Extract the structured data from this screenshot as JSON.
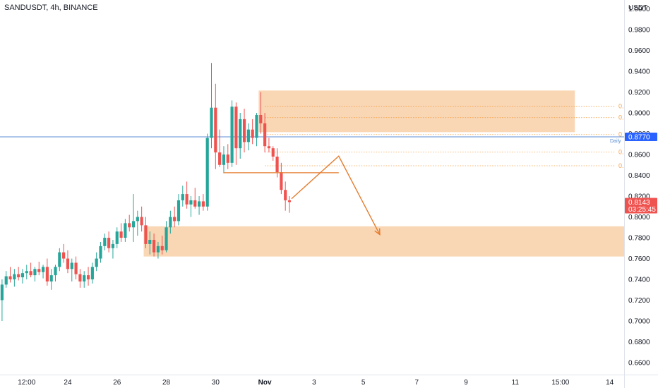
{
  "header": {
    "symbol_line": "SANDUSDT, 4h, BINANCE"
  },
  "colors": {
    "up": "#26a69a",
    "down": "#ef5350",
    "zone": "#f7c89b",
    "fib": "#f5a04a",
    "arrow": "#e57c2e",
    "hline": "#5b8fd6",
    "price_tag": "#ef5350",
    "hline_tag": "#2962ff"
  },
  "chart_data": {
    "type": "candlestick",
    "currency": "USDT",
    "y_ticks": [
      "1.0000",
      "0.9800",
      "0.9600",
      "0.9400",
      "0.9200",
      "0.9000",
      "0.8800",
      "0.8600",
      "0.8400",
      "0.8200",
      "0.8000",
      "0.7800",
      "0.7600",
      "0.7400",
      "0.7200",
      "0.7000",
      "0.6800",
      "0.6600"
    ],
    "x_ticks": [
      "12:00",
      "24",
      "26",
      "28",
      "30",
      "Nov",
      "3",
      "5",
      "7",
      "9",
      "11",
      "15:00",
      "14"
    ],
    "x_tick_bars": [
      6,
      16,
      28,
      40,
      52,
      64,
      76,
      88,
      101,
      113,
      125,
      136,
      148
    ],
    "ylim": [
      0.6485,
      1.0085
    ],
    "bars_visible": 152,
    "candles": [
      [
        0.72,
        0.74,
        0.7,
        0.735
      ],
      [
        0.735,
        0.748,
        0.732,
        0.743
      ],
      [
        0.743,
        0.752,
        0.737,
        0.74
      ],
      [
        0.74,
        0.75,
        0.733,
        0.745
      ],
      [
        0.745,
        0.752,
        0.739,
        0.742
      ],
      [
        0.742,
        0.75,
        0.736,
        0.746
      ],
      [
        0.746,
        0.754,
        0.74,
        0.748
      ],
      [
        0.748,
        0.756,
        0.742,
        0.744
      ],
      [
        0.744,
        0.752,
        0.738,
        0.75
      ],
      [
        0.75,
        0.757,
        0.744,
        0.747
      ],
      [
        0.747,
        0.754,
        0.741,
        0.752
      ],
      [
        0.752,
        0.76,
        0.734,
        0.738
      ],
      [
        0.738,
        0.75,
        0.73,
        0.744
      ],
      [
        0.744,
        0.754,
        0.738,
        0.752
      ],
      [
        0.752,
        0.77,
        0.748,
        0.766
      ],
      [
        0.766,
        0.774,
        0.756,
        0.76
      ],
      [
        0.76,
        0.768,
        0.746,
        0.75
      ],
      [
        0.75,
        0.76,
        0.738,
        0.756
      ],
      [
        0.756,
        0.762,
        0.74,
        0.745
      ],
      [
        0.745,
        0.75,
        0.732,
        0.738
      ],
      [
        0.738,
        0.748,
        0.732,
        0.744
      ],
      [
        0.744,
        0.752,
        0.734,
        0.74
      ],
      [
        0.74,
        0.756,
        0.736,
        0.752
      ],
      [
        0.752,
        0.766,
        0.748,
        0.76
      ],
      [
        0.76,
        0.776,
        0.756,
        0.772
      ],
      [
        0.772,
        0.784,
        0.768,
        0.78
      ],
      [
        0.78,
        0.786,
        0.766,
        0.77
      ],
      [
        0.77,
        0.778,
        0.76,
        0.774
      ],
      [
        0.774,
        0.79,
        0.77,
        0.786
      ],
      [
        0.786,
        0.794,
        0.776,
        0.78
      ],
      [
        0.78,
        0.798,
        0.776,
        0.794
      ],
      [
        0.794,
        0.802,
        0.786,
        0.79
      ],
      [
        0.79,
        0.822,
        0.776,
        0.796
      ],
      [
        0.796,
        0.806,
        0.782,
        0.8
      ],
      [
        0.8,
        0.81,
        0.786,
        0.792
      ],
      [
        0.792,
        0.8,
        0.77,
        0.774
      ],
      [
        0.774,
        0.786,
        0.764,
        0.778
      ],
      [
        0.778,
        0.784,
        0.762,
        0.766
      ],
      [
        0.766,
        0.776,
        0.76,
        0.772
      ],
      [
        0.772,
        0.782,
        0.764,
        0.768
      ],
      [
        0.768,
        0.796,
        0.766,
        0.79
      ],
      [
        0.79,
        0.806,
        0.784,
        0.8
      ],
      [
        0.8,
        0.81,
        0.79,
        0.796
      ],
      [
        0.796,
        0.822,
        0.792,
        0.816
      ],
      [
        0.816,
        0.83,
        0.81,
        0.822
      ],
      [
        0.822,
        0.834,
        0.808,
        0.812
      ],
      [
        0.812,
        0.82,
        0.8,
        0.816
      ],
      [
        0.816,
        0.828,
        0.808,
        0.81
      ],
      [
        0.81,
        0.82,
        0.802,
        0.815
      ],
      [
        0.815,
        0.822,
        0.806,
        0.81
      ],
      [
        0.81,
        0.88,
        0.806,
        0.876
      ],
      [
        0.876,
        0.948,
        0.866,
        0.905
      ],
      [
        0.905,
        0.928,
        0.846,
        0.862
      ],
      [
        0.862,
        0.884,
        0.848,
        0.85
      ],
      [
        0.85,
        0.868,
        0.842,
        0.86
      ],
      [
        0.86,
        0.87,
        0.846,
        0.852
      ],
      [
        0.852,
        0.912,
        0.848,
        0.906
      ],
      [
        0.906,
        0.91,
        0.85,
        0.866
      ],
      [
        0.866,
        0.9,
        0.856,
        0.894
      ],
      [
        0.894,
        0.904,
        0.862,
        0.872
      ],
      [
        0.872,
        0.89,
        0.864,
        0.884
      ],
      [
        0.884,
        0.894,
        0.87,
        0.876
      ],
      [
        0.876,
        0.9,
        0.868,
        0.898
      ],
      [
        0.898,
        0.92,
        0.88,
        0.89
      ],
      [
        0.89,
        0.9,
        0.862,
        0.868
      ],
      [
        0.868,
        0.876,
        0.862,
        0.866
      ],
      [
        0.866,
        0.868,
        0.854,
        0.858
      ],
      [
        0.858,
        0.866,
        0.838,
        0.843
      ],
      [
        0.843,
        0.852,
        0.822,
        0.826
      ],
      [
        0.826,
        0.834,
        0.806,
        0.816
      ],
      [
        0.816,
        0.82,
        0.804,
        0.8143
      ]
    ],
    "horizontal_line": {
      "value": 0.877,
      "label": "Daily",
      "tag": "0.8770"
    },
    "current_price": {
      "tag": "0.8143",
      "countdown": "03:25:45"
    },
    "supply_zone": {
      "from_bar": 63,
      "to_bar": 140,
      "top": 0.9215,
      "bottom": 0.8815
    },
    "demand_zone": {
      "from_bar": 35,
      "to_bar": 152,
      "top": 0.791,
      "bottom": 0.762
    },
    "fib_levels": [
      {
        "value": 0.9065,
        "label": "0."
      },
      {
        "value": 0.8955,
        "label": "0."
      },
      {
        "value": 0.8792,
        "label": "0"
      },
      {
        "value": 0.8625,
        "label": "0."
      },
      {
        "value": 0.8492,
        "label": "0."
      }
    ],
    "fib_from_bar": 64,
    "orange_level": {
      "value": 0.8425,
      "from_bar": 54,
      "to_bar": 82
    },
    "projection": [
      {
        "bar": 70.5,
        "value": 0.8175
      },
      {
        "bar": 82,
        "value": 0.8585
      },
      {
        "bar": 92,
        "value": 0.783
      }
    ]
  }
}
